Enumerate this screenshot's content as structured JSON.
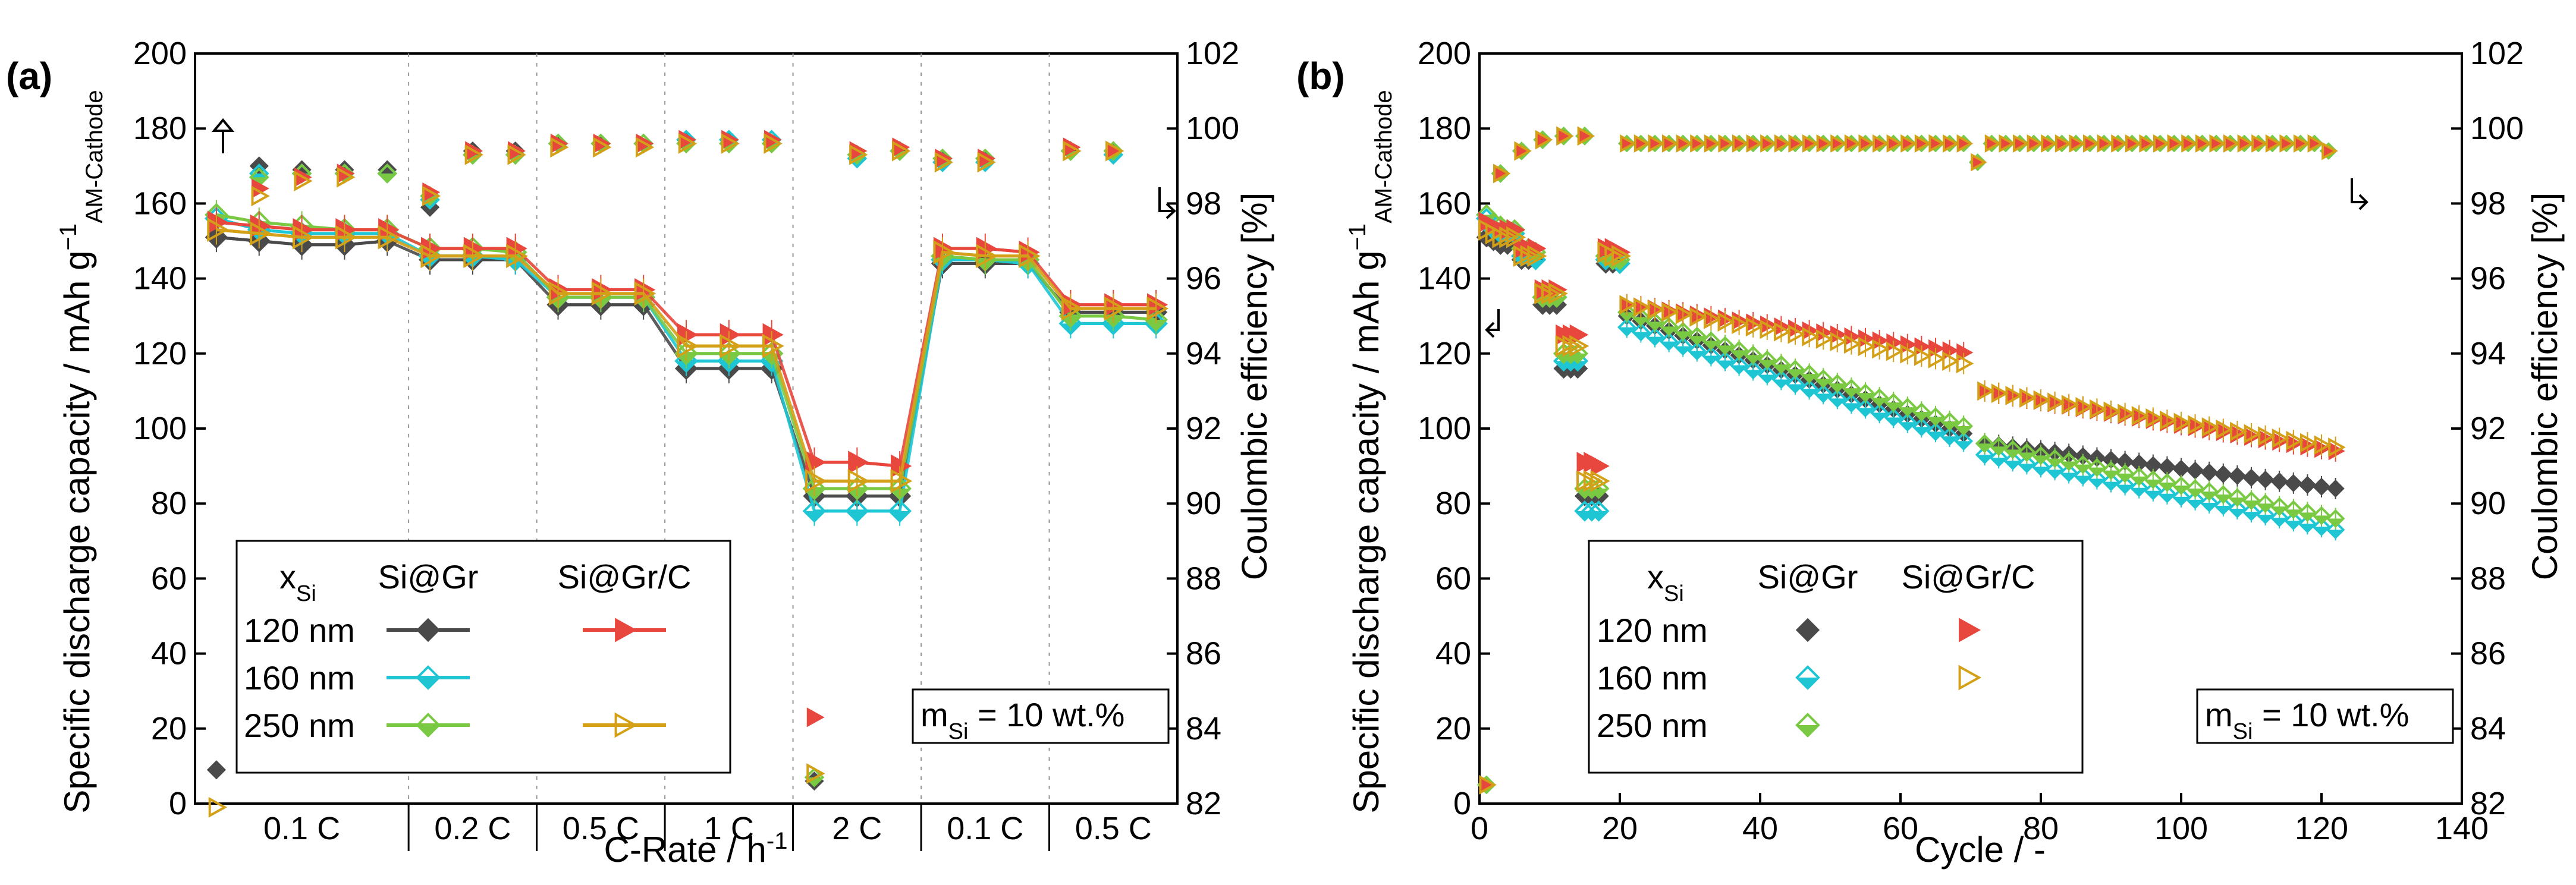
{
  "chart_data": [
    {
      "panel_label": "(a)",
      "type": "line-scatter",
      "xlabel": "C-Rate / h⁻¹",
      "ylabel_left": "Specific discharge capacity / mAh g⁻¹ AM-Cathode",
      "ylabel_right": "Coulombic efficiency [%]",
      "ylim_left": [
        0,
        200
      ],
      "ylim_right": [
        82,
        102
      ],
      "y_ticks_left": [
        "0",
        "20",
        "40",
        "60",
        "80",
        "100",
        "120",
        "140",
        "160",
        "180",
        "200"
      ],
      "y_ticks_right": [
        "82",
        "84",
        "86",
        "88",
        "90",
        "92",
        "94",
        "96",
        "98",
        "100",
        "102"
      ],
      "x_categories": [
        "0.1 C",
        "0.2 C",
        "0.5 C",
        "1 C",
        "2 C",
        "0.1 C",
        "0.5 C"
      ],
      "x_category_size": [
        5,
        3,
        3,
        3,
        3,
        3,
        3
      ],
      "x_range": [
        0,
        23
      ],
      "series": [
        {
          "name": "Si@Gr 120 nm",
          "group": "Si@Gr",
          "size": "120 nm",
          "marker": "diamond-filled",
          "color": "#4a4a4a",
          "show_line": true,
          "capacity": [
            151,
            150,
            149,
            149,
            150,
            145,
            145,
            145,
            133,
            133,
            133,
            116,
            116,
            116,
            82,
            82,
            82,
            144,
            144,
            144,
            131,
            131,
            131
          ],
          "ce": [
            82.9,
            99.0,
            98.9,
            98.9,
            98.9,
            97.9,
            99.4,
            99.4,
            99.6,
            99.6,
            null,
            99.7,
            99.7,
            null,
            82.6,
            99.2,
            99.4,
            99.2,
            99.2,
            null,
            99.4,
            99.4,
            null
          ]
        },
        {
          "name": "Si@Gr 160 nm",
          "group": "Si@Gr",
          "size": "160 nm",
          "marker": "diamond-half",
          "color": "#1ec6d4",
          "show_line": true,
          "capacity": [
            156,
            153,
            152,
            152,
            152,
            146,
            146,
            145,
            135,
            135,
            135,
            118,
            118,
            118,
            78,
            78,
            78,
            145,
            145,
            144,
            128,
            128,
            128
          ],
          "ce": [
            null,
            98.8,
            98.8,
            98.8,
            98.8,
            98.1,
            99.3,
            99.3,
            99.6,
            99.6,
            99.6,
            99.7,
            99.7,
            99.7,
            null,
            99.2,
            99.4,
            99.1,
            99.1,
            null,
            99.4,
            99.3,
            null
          ]
        },
        {
          "name": "Si@Gr 250 nm",
          "group": "Si@Gr",
          "size": "250 nm",
          "marker": "diamond-half",
          "color": "#7ac943",
          "show_line": true,
          "capacity": [
            157,
            155,
            154,
            153,
            153,
            148,
            148,
            147,
            135,
            135,
            135,
            120,
            120,
            120,
            84,
            84,
            84,
            146,
            145,
            145,
            130,
            130,
            129
          ],
          "ce": [
            null,
            98.7,
            98.8,
            98.8,
            98.8,
            98.2,
            99.3,
            99.3,
            99.6,
            99.6,
            99.6,
            99.6,
            99.6,
            99.6,
            82.7,
            99.3,
            99.4,
            99.2,
            99.2,
            null,
            99.4,
            99.4,
            null
          ]
        },
        {
          "name": "Si@Gr/C 120 nm",
          "group": "Si@Gr/C",
          "size": "120 nm",
          "marker": "triangle-right-filled",
          "color": "#e8473d",
          "show_line": true,
          "capacity": [
            155,
            154,
            153,
            153,
            153,
            148,
            148,
            148,
            137,
            137,
            137,
            125,
            125,
            125,
            91,
            91,
            90,
            148,
            148,
            147,
            133,
            133,
            133
          ],
          "ce": [
            null,
            98.4,
            98.7,
            98.8,
            null,
            98.3,
            99.4,
            99.4,
            99.6,
            99.6,
            99.6,
            99.7,
            99.7,
            99.7,
            84.3,
            99.4,
            99.5,
            99.2,
            99.2,
            null,
            99.5,
            99.4,
            null
          ]
        },
        {
          "name": "Si@Gr/C 250 nm",
          "group": "Si@Gr/C",
          "size": "250 nm",
          "marker": "triangle-right-open",
          "color": "#d4a017",
          "show_line": true,
          "capacity": [
            153,
            152,
            151,
            151,
            151,
            146,
            146,
            146,
            136,
            136,
            136,
            122,
            122,
            122,
            86,
            86,
            86,
            147,
            146,
            146,
            132,
            132,
            132
          ],
          "ce": [
            81.9,
            98.2,
            98.6,
            98.7,
            null,
            98.2,
            99.3,
            99.3,
            99.5,
            99.5,
            99.5,
            99.6,
            99.6,
            99.6,
            82.8,
            99.3,
            99.4,
            99.1,
            99.1,
            null,
            99.4,
            99.4,
            null
          ]
        }
      ],
      "legend": {
        "header_x": "x",
        "header_x_sub": "Si",
        "header_groups": [
          "Si@Gr",
          "Si@Gr/C"
        ],
        "rows": [
          "120 nm",
          "160 nm",
          "250 nm"
        ]
      },
      "annotation": {
        "m": "m",
        "m_sub": "Si",
        "rest": " = 10 wt.%"
      }
    },
    {
      "panel_label": "(b)",
      "type": "scatter",
      "xlabel": "Cycle / -",
      "ylabel_left": "Specific discharge capacity / mAh g⁻¹ AM-Cathode",
      "ylabel_right": "Coulombic efficiency [%]",
      "xlim": [
        0,
        140
      ],
      "x_ticks": [
        "0",
        "20",
        "40",
        "60",
        "80",
        "100",
        "120",
        "140"
      ],
      "ylim_left": [
        0,
        200
      ],
      "ylim_right": [
        82,
        102
      ],
      "y_ticks_left": [
        "0",
        "20",
        "40",
        "60",
        "80",
        "100",
        "120",
        "140",
        "160",
        "180",
        "200"
      ],
      "y_ticks_right": [
        "82",
        "84",
        "86",
        "88",
        "90",
        "92",
        "94",
        "96",
        "98",
        "100",
        "102"
      ],
      "capacity_trends": [
        {
          "name": "Si@Gr 120 nm",
          "color": "#4a4a4a",
          "marker": "diamond-filled",
          "early": [
            151,
            150,
            149,
            149,
            150,
            145,
            145,
            145,
            133,
            133,
            133,
            116,
            116,
            116,
            82,
            82,
            82,
            144,
            144,
            144
          ],
          "fade_a": [
            21,
            130,
            70,
            98
          ],
          "fade_b": [
            72,
            96,
            122,
            84
          ]
        },
        {
          "name": "Si@Gr 160 nm",
          "color": "#1ec6d4",
          "marker": "diamond-half",
          "early": [
            156,
            153,
            152,
            152,
            152,
            146,
            146,
            145,
            135,
            135,
            135,
            118,
            118,
            118,
            78,
            78,
            78,
            145,
            145,
            144
          ],
          "fade_a": [
            21,
            127,
            70,
            96
          ],
          "fade_b": [
            72,
            93,
            122,
            73
          ]
        },
        {
          "name": "Si@Gr 250 nm",
          "color": "#7ac943",
          "marker": "diamond-half",
          "early": [
            157,
            155,
            154,
            153,
            153,
            148,
            148,
            147,
            135,
            135,
            135,
            120,
            120,
            120,
            84,
            84,
            84,
            146,
            145,
            145
          ],
          "fade_a": [
            21,
            131,
            70,
            100
          ],
          "fade_b": [
            72,
            96,
            122,
            76
          ]
        },
        {
          "name": "Si@Gr/C 120 nm",
          "color": "#e8473d",
          "marker": "triangle-right-filled",
          "early": [
            155,
            154,
            153,
            153,
            153,
            148,
            148,
            148,
            137,
            137,
            137,
            125,
            125,
            125,
            91,
            91,
            90,
            148,
            148,
            147
          ],
          "fade_a": [
            21,
            133,
            70,
            120
          ],
          "fade_b": [
            72,
            110,
            122,
            94
          ]
        },
        {
          "name": "Si@Gr/C 250 nm",
          "color": "#d4a017",
          "marker": "triangle-right-open",
          "early": [
            153,
            152,
            151,
            151,
            151,
            146,
            146,
            146,
            136,
            136,
            136,
            122,
            122,
            122,
            86,
            86,
            86,
            147,
            146,
            146
          ],
          "fade_a": [
            21,
            133,
            70,
            117
          ],
          "fade_b": [
            72,
            110,
            122,
            95
          ]
        }
      ],
      "ce_trend": {
        "first": 82.5,
        "early_rise": [
          98.8,
          99.4,
          99.7,
          99.8,
          99.8
        ],
        "plateau": 99.6,
        "dip_at_cycle": 71,
        "dip_value": 99.1,
        "end": 99.4
      },
      "legend": {
        "header_x": "x",
        "header_x_sub": "Si",
        "header_groups": [
          "Si@Gr",
          "Si@Gr/C"
        ],
        "rows": [
          "120 nm",
          "160 nm",
          "250 nm"
        ]
      },
      "annotation": {
        "m": "m",
        "m_sub": "Si",
        "rest": " = 10 wt.%"
      }
    }
  ]
}
